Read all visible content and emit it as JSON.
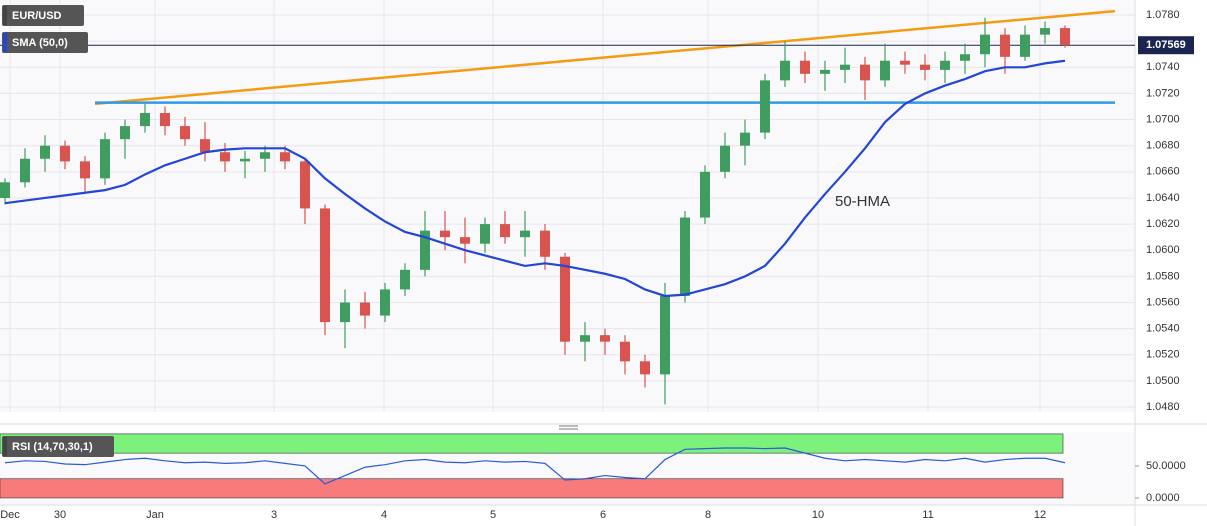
{
  "chart_data": [
    {
      "type": "candlestick",
      "name": "EUR/USD",
      "bull_color": "#3f9e5f",
      "bear_color": "#d9534f",
      "open": [
        1.064,
        1.0652,
        1.067,
        1.068,
        1.0668,
        1.0655,
        1.0685,
        1.0695,
        1.0705,
        1.0695,
        1.0685,
        1.0675,
        1.0668,
        1.067,
        1.0675,
        1.0668,
        1.0632,
        1.0545,
        1.056,
        1.055,
        1.057,
        1.0585,
        1.0615,
        1.061,
        1.0605,
        1.062,
        1.061,
        1.0615,
        1.0595,
        1.053,
        1.0535,
        1.053,
        1.0515,
        1.0505,
        1.0565,
        1.0625,
        1.066,
        1.068,
        1.069,
        1.073,
        1.0745,
        1.0735,
        1.0738,
        1.0742,
        1.073,
        1.0745,
        1.0742,
        1.0738,
        1.0745,
        1.075,
        1.0765,
        1.0748,
        1.0765,
        1.077
      ],
      "high": [
        1.0655,
        1.0678,
        1.0688,
        1.0684,
        1.0672,
        1.069,
        1.07,
        1.0712,
        1.071,
        1.0702,
        1.0698,
        1.0682,
        1.0676,
        1.068,
        1.068,
        1.067,
        1.0635,
        1.057,
        1.0568,
        1.0575,
        1.059,
        1.063,
        1.063,
        1.0625,
        1.0625,
        1.063,
        1.063,
        1.062,
        1.0598,
        1.0545,
        1.054,
        1.0535,
        1.052,
        1.0575,
        1.063,
        1.0665,
        1.069,
        1.07,
        1.0735,
        1.076,
        1.0752,
        1.0745,
        1.0755,
        1.0748,
        1.0758,
        1.0752,
        1.075,
        1.0752,
        1.0758,
        1.0778,
        1.077,
        1.0772,
        1.0775,
        1.0772
      ],
      "low": [
        1.0635,
        1.0648,
        1.066,
        1.0662,
        1.0645,
        1.065,
        1.067,
        1.069,
        1.0688,
        1.068,
        1.0668,
        1.066,
        1.0655,
        1.066,
        1.0662,
        1.062,
        1.0535,
        1.0525,
        1.054,
        1.0545,
        1.0565,
        1.058,
        1.06,
        1.059,
        1.0598,
        1.0605,
        1.0595,
        1.0585,
        1.052,
        1.0515,
        1.052,
        1.0505,
        1.0495,
        1.0482,
        1.056,
        1.062,
        1.0655,
        1.0665,
        1.0685,
        1.0725,
        1.0728,
        1.0722,
        1.0728,
        1.0715,
        1.0725,
        1.0735,
        1.073,
        1.0728,
        1.0735,
        1.074,
        1.0735,
        1.0745,
        1.0758,
        1.0755
      ],
      "close": [
        1.0652,
        1.067,
        1.068,
        1.0668,
        1.0655,
        1.0685,
        1.0695,
        1.0705,
        1.0695,
        1.0685,
        1.0675,
        1.0668,
        1.067,
        1.0675,
        1.0668,
        1.0632,
        1.0545,
        1.056,
        1.055,
        1.057,
        1.0585,
        1.0615,
        1.061,
        1.0605,
        1.062,
        1.061,
        1.0615,
        1.0595,
        1.053,
        1.0535,
        1.053,
        1.0515,
        1.0505,
        1.0565,
        1.0625,
        1.066,
        1.068,
        1.069,
        1.073,
        1.0745,
        1.0735,
        1.0738,
        1.0742,
        1.073,
        1.0745,
        1.0742,
        1.0738,
        1.0745,
        1.075,
        1.0765,
        1.0748,
        1.0765,
        1.077,
        1.0757
      ],
      "overlay": {
        "name": "SMA (50,0)",
        "color": "#2346d6",
        "annotation": "50-HMA",
        "annotation_color": "#7b4fc4",
        "values": [
          1.0636,
          1.0638,
          1.064,
          1.0642,
          1.0644,
          1.0646,
          1.065,
          1.0658,
          1.0665,
          1.067,
          1.0675,
          1.0677,
          1.0678,
          1.0678,
          1.0678,
          1.067,
          1.0655,
          1.0643,
          1.0632,
          1.0622,
          1.0614,
          1.061,
          1.0605,
          1.06,
          1.0596,
          1.0592,
          1.0588,
          1.059,
          1.0588,
          1.0585,
          1.0582,
          1.0578,
          1.057,
          1.0565,
          1.0566,
          1.057,
          1.0574,
          1.058,
          1.0588,
          1.0605,
          1.0625,
          1.0643,
          1.066,
          1.0678,
          1.0698,
          1.0712,
          1.072,
          1.0726,
          1.0731,
          1.0737,
          1.074,
          1.074,
          1.0743,
          1.0745
        ]
      },
      "trendlines": [
        {
          "color": "#f39c12",
          "x": [
            4.5,
            55.5
          ],
          "y": [
            1.0712,
            1.0783
          ]
        },
        {
          "color": "#2e9be6",
          "x": [
            4.5,
            55.5
          ],
          "y": [
            1.0713,
            1.0713
          ]
        }
      ],
      "last_price": 1.07569,
      "last_price_color": "#1c2452",
      "xlim": [
        -0.25,
        56.5
      ],
      "ylim": [
        1.04762,
        1.07915
      ],
      "xticks": [
        {
          "value": 0.25,
          "label": "Dec"
        },
        {
          "value": 2.75,
          "label": "30"
        },
        {
          "value": 7.5,
          "label": "Jan"
        },
        {
          "value": 13.45,
          "label": "3"
        },
        {
          "value": 18.95,
          "label": "4"
        },
        {
          "value": 24.4,
          "label": "5"
        },
        {
          "value": 29.9,
          "label": "6"
        },
        {
          "value": 35.15,
          "label": "8"
        },
        {
          "value": 40.65,
          "label": "10"
        },
        {
          "value": 46.15,
          "label": "11"
        },
        {
          "value": 51.75,
          "label": "12"
        }
      ],
      "yticks": [
        {
          "value": 1.048,
          "label": "1.0480"
        },
        {
          "value": 1.05,
          "label": "1.0500"
        },
        {
          "value": 1.052,
          "label": "1.0520"
        },
        {
          "value": 1.054,
          "label": "1.0540"
        },
        {
          "value": 1.056,
          "label": "1.0560"
        },
        {
          "value": 1.058,
          "label": "1.0580"
        },
        {
          "value": 1.06,
          "label": "1.0600"
        },
        {
          "value": 1.062,
          "label": "1.0620"
        },
        {
          "value": 1.064,
          "label": "1.0640"
        },
        {
          "value": 1.066,
          "label": "1.0660"
        },
        {
          "value": 1.068,
          "label": "1.0680"
        },
        {
          "value": 1.07,
          "label": "1.0700"
        },
        {
          "value": 1.072,
          "label": "1.0720"
        },
        {
          "value": 1.074,
          "label": "1.0740"
        },
        {
          "value": 1.076,
          "label": "1.0760"
        },
        {
          "value": 1.078,
          "label": "1.0780"
        }
      ],
      "grid": true
    },
    {
      "type": "line",
      "name": "RSI (14,70,30,1)",
      "color": "#2a5bd7",
      "values": [
        55,
        58,
        57,
        53,
        52,
        56,
        60,
        62,
        58,
        55,
        56,
        54,
        55,
        58,
        54,
        50,
        22,
        35,
        48,
        52,
        58,
        60,
        56,
        55,
        58,
        56,
        57,
        54,
        28,
        30,
        35,
        32,
        30,
        60,
        76,
        77,
        78,
        78,
        77,
        78,
        70,
        62,
        58,
        60,
        58,
        56,
        60,
        58,
        62,
        56,
        60,
        62,
        62,
        55
      ],
      "zones": [
        {
          "range": [
            70,
            100
          ],
          "color": "#7cf27c"
        },
        {
          "range": [
            0,
            30
          ],
          "color": "#f77b7b"
        }
      ],
      "xlim": [
        -0.25,
        56.5
      ],
      "ylim": [
        -11,
        103
      ],
      "yticks": [
        {
          "value": 0,
          "label": "0.0000"
        },
        {
          "value": 50,
          "label": "50.0000"
        }
      ]
    }
  ]
}
